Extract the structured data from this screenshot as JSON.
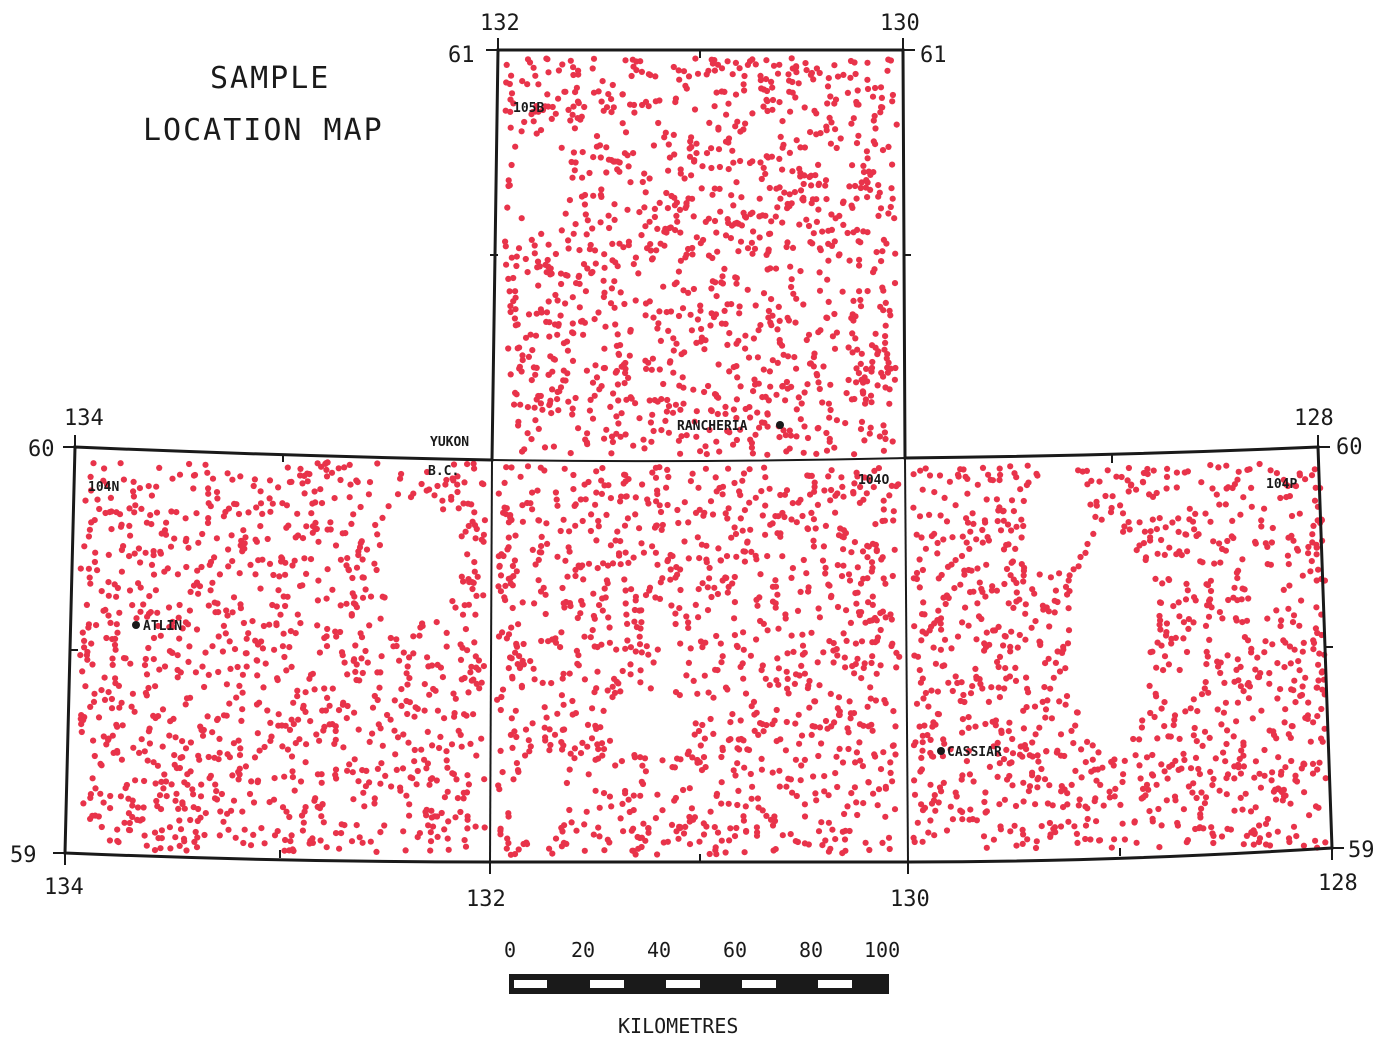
{
  "title_line1": "SAMPLE",
  "title_line2": "LOCATION MAP",
  "lon_labels": {
    "l134_top": "134",
    "l132_top": "132",
    "l130_top": "130",
    "l128_top": "128",
    "l134_bot": "134",
    "l132_bot": "132",
    "l130_bot": "130",
    "l128_bot": "128"
  },
  "lat_labels": {
    "l61_left": "61",
    "l61_right": "61",
    "l60_left": "60",
    "l60_right": "60",
    "l59_left": "59",
    "l59_right": "59"
  },
  "sheets": {
    "s105b": "105B",
    "s104n": "104N",
    "s104o": "104O",
    "s104p": "104P"
  },
  "boundary": {
    "yukon": "YUKON",
    "bc": "B.C."
  },
  "places": {
    "rancheria": "RANCHERIA",
    "atlin": "ATLIN",
    "cassiar": "CASSIAR"
  },
  "scale": {
    "ticks": [
      "0",
      "20",
      "40",
      "60",
      "80",
      "100"
    ],
    "unit": "KILOMETRES"
  },
  "colors": {
    "sample_dot": "#e8334a",
    "line": "#1a1a1a"
  }
}
